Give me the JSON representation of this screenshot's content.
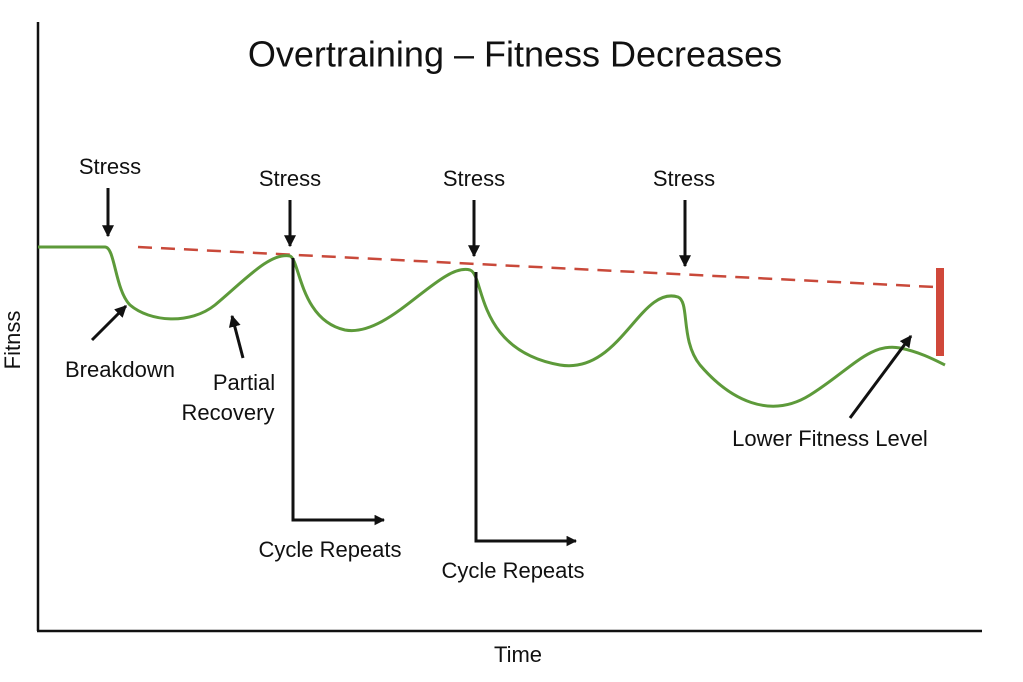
{
  "title": "Overtraining – Fitness Decreases",
  "axes": {
    "y_label": "Fitnss",
    "x_label": "Time"
  },
  "annotations": {
    "stress": [
      "Stress",
      "Stress",
      "Stress",
      "Stress"
    ],
    "breakdown": "Breakdown",
    "partial_recovery": [
      "Partial",
      "Recovery"
    ],
    "cycle_repeats": [
      "Cycle Repeats",
      "Cycle Repeats"
    ],
    "lower_fitness_level": "Lower Fitness Level"
  }
}
